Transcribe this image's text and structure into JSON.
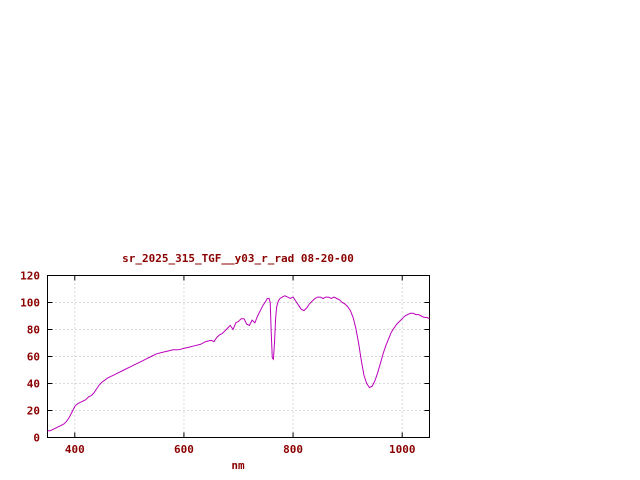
{
  "window": {
    "background": "#ffffff"
  },
  "colors": {
    "background": "#ffffff",
    "text": "#8b0000",
    "axis": "#000000",
    "grid": "#b4b4b4"
  },
  "chart_data": {
    "type": "line",
    "title": "sr_2025_315_TGF__y03_r_rad 08-20-00",
    "xlabel": "nm",
    "ylabel": "",
    "xlim": [
      350,
      1050
    ],
    "ylim": [
      0,
      120
    ],
    "xticks": [
      400,
      600,
      800,
      1000
    ],
    "yticks": [
      0,
      20,
      40,
      60,
      80,
      100,
      120
    ],
    "grid": true,
    "legend": "none",
    "series": [
      {
        "name": "sr_2025_315_TGF__y03_r_rad",
        "color": "#bb00bb",
        "x": [
          350,
          355,
          360,
          365,
          370,
          375,
          380,
          385,
          390,
          395,
          400,
          405,
          410,
          415,
          420,
          425,
          430,
          435,
          440,
          445,
          450,
          460,
          470,
          480,
          490,
          500,
          510,
          520,
          530,
          540,
          550,
          560,
          570,
          580,
          590,
          600,
          610,
          620,
          630,
          640,
          650,
          655,
          660,
          665,
          670,
          675,
          680,
          685,
          690,
          695,
          700,
          705,
          710,
          715,
          720,
          725,
          730,
          735,
          740,
          745,
          750,
          753,
          756,
          758,
          760,
          762,
          764,
          766,
          768,
          770,
          773,
          776,
          780,
          785,
          790,
          795,
          800,
          805,
          810,
          815,
          820,
          825,
          830,
          835,
          840,
          845,
          850,
          855,
          860,
          865,
          870,
          875,
          880,
          885,
          890,
          895,
          900,
          905,
          910,
          915,
          920,
          925,
          930,
          935,
          940,
          945,
          950,
          955,
          960,
          965,
          970,
          975,
          980,
          985,
          990,
          995,
          1000,
          1005,
          1010,
          1015,
          1020,
          1025,
          1030,
          1035,
          1040,
          1045,
          1050
        ],
        "y": [
          5,
          5,
          6,
          7,
          8,
          9,
          10,
          12,
          15,
          19,
          23,
          25,
          26,
          27,
          28,
          30,
          31,
          33,
          36,
          39,
          41,
          44,
          46,
          48,
          50,
          52,
          54,
          56,
          58,
          60,
          62,
          63,
          64,
          65,
          65,
          66,
          67,
          68,
          69,
          71,
          72,
          71,
          74,
          76,
          77,
          79,
          81,
          83,
          80,
          85,
          86,
          88,
          88,
          84,
          83,
          87,
          85,
          90,
          94,
          98,
          101,
          103,
          103,
          100,
          78,
          59,
          58,
          70,
          88,
          97,
          101,
          103,
          104,
          105,
          104,
          103,
          104,
          101,
          98,
          95,
          94,
          96,
          99,
          101,
          103,
          104,
          104,
          103,
          104,
          104,
          103,
          104,
          103,
          102,
          100,
          99,
          97,
          94,
          89,
          81,
          70,
          57,
          46,
          40,
          37,
          38,
          42,
          48,
          55,
          62,
          68,
          73,
          78,
          81,
          84,
          86,
          88,
          90,
          91,
          92,
          92,
          91,
          91,
          90,
          89,
          89,
          88
        ]
      }
    ]
  }
}
